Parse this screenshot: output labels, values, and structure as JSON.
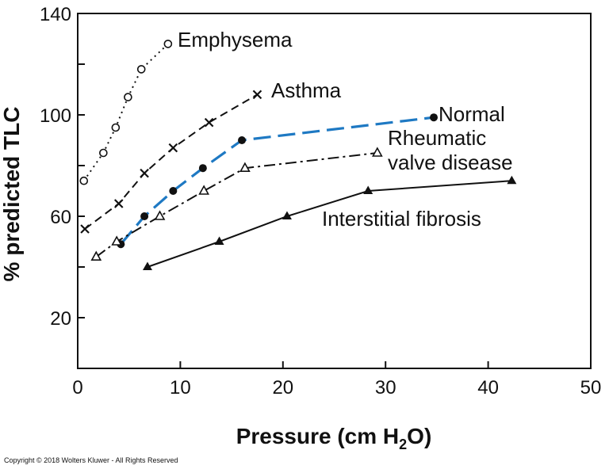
{
  "chart_data": {
    "type": "line",
    "xlabel": "Pressure (cm H2O)",
    "xlabel_parts": {
      "pre": "Pressure (cm H",
      "sub": "2",
      "post": "O)"
    },
    "ylabel": "% predicted TLC",
    "xlim": [
      0,
      50
    ],
    "ylim": [
      0,
      140
    ],
    "xticks": [
      0,
      10,
      20,
      30,
      40,
      50
    ],
    "yticks": [
      20,
      60,
      100,
      140
    ],
    "grid": false,
    "series": [
      {
        "name": "Emphysema",
        "color": "#111111",
        "dash": "2,5",
        "marker": "open-circle",
        "x": [
          0.6,
          2.5,
          3.7,
          4.9,
          6.2,
          8.8
        ],
        "y": [
          74,
          85,
          95,
          107,
          118,
          128
        ]
      },
      {
        "name": "Asthma",
        "color": "#111111",
        "dash": "10,6",
        "marker": "x",
        "x": [
          0.7,
          4,
          6.5,
          9.3,
          12.8,
          17.5
        ],
        "y": [
          55,
          65,
          77,
          87,
          97,
          108
        ]
      },
      {
        "name": "Normal",
        "color": "#1e79c3",
        "dash": "22,9",
        "marker": "filled-circle",
        "x": [
          4.2,
          6.5,
          9.3,
          12.2,
          16,
          34.7
        ],
        "y": [
          49,
          60,
          70,
          79,
          90,
          99
        ]
      },
      {
        "name": "Rheumatic valve disease",
        "color": "#111111",
        "dash": "14,5,3,5",
        "marker": "open-triangle",
        "x": [
          1.8,
          3.8,
          8,
          12.3,
          16.3,
          29.2
        ],
        "y": [
          44,
          50,
          60,
          70,
          79,
          85
        ]
      },
      {
        "name": "Interstitial fibrosis",
        "color": "#111111",
        "dash": "",
        "marker": "filled-triangle",
        "x": [
          6.8,
          13.8,
          20.4,
          28.3,
          42.3
        ],
        "y": [
          40,
          50,
          60,
          70,
          74
        ]
      }
    ],
    "labels": {
      "emphysema": "Emphysema",
      "asthma": "Asthma",
      "normal": "Normal",
      "rheumatic_1": "Rheumatic",
      "rheumatic_2": "valve disease",
      "fibrosis": "Interstitial fibrosis"
    }
  },
  "copyright": "Copyright © 2018 Wolters Kluwer - All Rights Reserved"
}
